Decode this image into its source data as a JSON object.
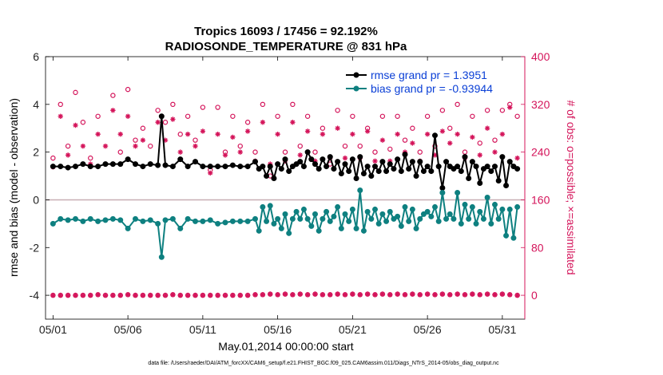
{
  "chart_data": {
    "type": "line",
    "title_line1": "Tropics 16093 / 17456 = 92.192%",
    "title_line2": "RADIOSONDE_TEMPERATURE @ 831 hPa",
    "xlabel": "May.01,2014 00:00:00 start",
    "ylabel": "rmse and bias (model - observation)",
    "y2label": "# of obs: o=possible; ×=assimilated",
    "footnote": "data file: /Users/raeder/DAI/ATM_forcXX/CAM6_setup/f.e21.FHIST_BGC.f09_025.CAM6assim.011/Diags_NTrS_2014-05/obs_diag_output.nc",
    "xlim": [
      0.5,
      32.5
    ],
    "ylim": [
      -5,
      6
    ],
    "y2lim": [
      -40,
      400
    ],
    "x_ticks": [
      1,
      6,
      11,
      16,
      21,
      26,
      31
    ],
    "x_tick_labels": [
      "05/01",
      "05/06",
      "05/11",
      "05/16",
      "05/21",
      "05/26",
      "05/31"
    ],
    "y_ticks": [
      -4,
      -2,
      0,
      2,
      4,
      6
    ],
    "y_tick_labels": [
      "-4",
      "-2",
      "0",
      "2",
      "4",
      "6"
    ],
    "y2_ticks": [
      0,
      80,
      160,
      240,
      320,
      400
    ],
    "y2_tick_labels": [
      "0",
      "80",
      "160",
      "240",
      "320",
      "400"
    ],
    "colors": {
      "rmse": "#000000",
      "bias": "#0e8080",
      "obs": "#d4145a",
      "legend_text": "#0a3fd6",
      "zero_line": "#c8aeb4",
      "axis": "#000000"
    },
    "series": [
      {
        "name": "rmse grand pr = 1.3951",
        "x": [
          1,
          1.5,
          2,
          2.5,
          3,
          3.5,
          4,
          4.5,
          5,
          5.5,
          6,
          6.5,
          7,
          7.5,
          8,
          8.25,
          8.5,
          9,
          9.5,
          10,
          10.5,
          11,
          11.5,
          12,
          12.5,
          13,
          13.5,
          14,
          14.5,
          14.75,
          15,
          15.25,
          15.5,
          15.75,
          16,
          16.25,
          16.5,
          16.75,
          17,
          17.25,
          17.5,
          17.75,
          18,
          18.25,
          18.5,
          18.75,
          19,
          19.25,
          19.5,
          19.75,
          20,
          20.25,
          20.5,
          20.75,
          21,
          21.25,
          21.5,
          21.75,
          22,
          22.25,
          22.5,
          22.75,
          23,
          23.25,
          23.5,
          23.75,
          24,
          24.25,
          24.5,
          24.75,
          25,
          25.25,
          25.5,
          25.75,
          26,
          26.25,
          26.5,
          26.75,
          27,
          27.25,
          27.5,
          27.75,
          28,
          28.25,
          28.5,
          28.75,
          29,
          29.25,
          29.5,
          29.75,
          30,
          30.25,
          30.5,
          30.75,
          31,
          31.25,
          31.5,
          31.75,
          32
        ],
        "values": [
          1.4,
          1.4,
          1.35,
          1.4,
          1.5,
          1.4,
          1.4,
          1.5,
          1.5,
          1.5,
          1.7,
          1.5,
          1.4,
          1.5,
          1.45,
          3.5,
          1.45,
          1.4,
          1.7,
          1.4,
          1.6,
          1.4,
          1.4,
          1.4,
          1.4,
          1.45,
          1.4,
          1.4,
          1.6,
          1.3,
          1.4,
          1.0,
          1.4,
          0.9,
          1.5,
          1.3,
          1.7,
          1.2,
          1.4,
          1.5,
          1.6,
          1.4,
          2.0,
          1.7,
          1.5,
          1.3,
          1.7,
          1.4,
          1.8,
          1.3,
          1.6,
          1.1,
          1.5,
          1.2,
          1.7,
          0.9,
          1.8,
          1.1,
          1.4,
          1.0,
          1.4,
          1.2,
          1.6,
          1.2,
          1.5,
          1.3,
          1.7,
          1.2,
          1.9,
          1.3,
          1.6,
          1.0,
          1.6,
          1.2,
          1.4,
          1.2,
          2.7,
          1.4,
          0.5,
          1.6,
          1.4,
          1.3,
          1.4,
          1.2,
          1.8,
          0.9,
          1.6,
          1.4,
          0.7,
          1.3,
          1.4,
          1.2,
          1.4,
          0.8,
          1.8,
          0.6,
          1.6,
          1.4,
          1.3
        ]
      },
      {
        "name": "bias grand pr = -0.93944",
        "x": [
          1,
          1.5,
          2,
          2.5,
          3,
          3.5,
          4,
          4.5,
          5,
          5.5,
          6,
          6.5,
          7,
          7.5,
          8,
          8.25,
          8.5,
          9,
          9.5,
          10,
          10.5,
          11,
          11.5,
          12,
          12.5,
          13,
          13.5,
          14,
          14.5,
          14.75,
          15,
          15.25,
          15.5,
          15.75,
          16,
          16.25,
          16.5,
          16.75,
          17,
          17.25,
          17.5,
          17.75,
          18,
          18.25,
          18.5,
          18.75,
          19,
          19.25,
          19.5,
          19.75,
          20,
          20.25,
          20.5,
          20.75,
          21,
          21.25,
          21.5,
          21.75,
          22,
          22.25,
          22.5,
          22.75,
          23,
          23.25,
          23.5,
          23.75,
          24,
          24.25,
          24.5,
          24.75,
          25,
          25.25,
          25.5,
          25.75,
          26,
          26.25,
          26.5,
          26.75,
          27,
          27.25,
          27.5,
          27.75,
          28,
          28.25,
          28.5,
          28.75,
          29,
          29.25,
          29.5,
          29.75,
          30,
          30.25,
          30.5,
          30.75,
          31,
          31.25,
          31.5,
          31.75,
          32
        ],
        "values": [
          -1.0,
          -0.8,
          -0.85,
          -0.8,
          -0.9,
          -0.8,
          -0.9,
          -0.85,
          -0.8,
          -0.85,
          -1.2,
          -0.8,
          -0.9,
          -0.85,
          -1.0,
          -2.4,
          -0.85,
          -0.8,
          -1.2,
          -0.8,
          -0.9,
          -0.9,
          -0.85,
          -1.0,
          -0.95,
          -0.9,
          -0.9,
          -0.9,
          -0.8,
          -1.3,
          -0.3,
          -0.9,
          -0.25,
          -1.0,
          -0.8,
          -1.2,
          -0.6,
          -1.4,
          -0.8,
          -0.5,
          -0.8,
          -0.4,
          -0.8,
          -1.1,
          -0.6,
          -1.3,
          -0.8,
          -0.5,
          -0.9,
          -0.7,
          -0.3,
          -1.2,
          -0.6,
          -0.9,
          -0.4,
          -1.2,
          0.4,
          -1.3,
          -0.5,
          -0.8,
          -0.4,
          -1.0,
          -0.6,
          -0.9,
          -0.5,
          -0.8,
          -0.7,
          -1.1,
          -0.3,
          -0.9,
          -0.4,
          -1.2,
          -0.8,
          -0.6,
          -0.5,
          -0.7,
          -0.3,
          -0.9,
          0.3,
          -0.8,
          -0.6,
          -0.8,
          0.3,
          -1.0,
          -0.2,
          -0.8,
          -0.3,
          -1.0,
          -0.5,
          -0.8,
          0.1,
          -1.0,
          -0.2,
          -0.8,
          -0.4,
          -1.5,
          -0.4,
          -1.6,
          -0.3
        ]
      }
    ],
    "obs_possible": {
      "x": [
        1,
        1.5,
        2,
        2.5,
        3,
        3.5,
        4,
        4.5,
        5,
        5.5,
        6,
        6.5,
        7,
        7.5,
        8,
        8.5,
        9,
        9.5,
        10,
        10.5,
        11,
        11.5,
        12,
        12.5,
        13,
        13.5,
        14,
        14.5,
        15,
        15.5,
        16,
        16.5,
        17,
        17.5,
        18,
        18.5,
        19,
        19.5,
        20,
        20.5,
        21,
        21.5,
        22,
        22.5,
        23,
        23.5,
        24,
        24.5,
        25,
        25.5,
        26,
        26.5,
        27,
        27.5,
        28,
        28.5,
        29,
        29.5,
        30,
        30.5,
        31,
        31.5,
        32
      ],
      "values": [
        230,
        320,
        250,
        340,
        290,
        230,
        300,
        220,
        335,
        240,
        345,
        260,
        280,
        250,
        310,
        290,
        320,
        270,
        300,
        260,
        315,
        210,
        315,
        240,
        300,
        250,
        290,
        240,
        320,
        200,
        300,
        240,
        320,
        250,
        300,
        240,
        280,
        220,
        310,
        250,
        300,
        250,
        280,
        240,
        300,
        245,
        300,
        260,
        280,
        240,
        300,
        250,
        310,
        280,
        320,
        240,
        300,
        255,
        310,
        260,
        310,
        320,
        300
      ]
    },
    "obs_assimilated": {
      "x": [
        1,
        1.5,
        2,
        2.5,
        3,
        3.5,
        4,
        4.5,
        5,
        5.5,
        6,
        6.5,
        7,
        7.5,
        8,
        8.5,
        9,
        9.5,
        10,
        10.5,
        11,
        11.5,
        12,
        12.5,
        13,
        13.5,
        14,
        14.5,
        15,
        15.5,
        16,
        16.5,
        17,
        17.5,
        18,
        18.5,
        19,
        19.5,
        20,
        20.5,
        21,
        21.5,
        22,
        22.5,
        23,
        23.5,
        24,
        24.5,
        25,
        25.5,
        26,
        26.5,
        27,
        27.5,
        28,
        28.5,
        29,
        29.5,
        30,
        30.5,
        31,
        31.5,
        32
      ],
      "values": [
        215,
        300,
        235,
        285,
        250,
        220,
        270,
        250,
        310,
        270,
        300,
        250,
        260,
        220,
        290,
        260,
        295,
        240,
        270,
        250,
        275,
        205,
        270,
        235,
        265,
        240,
        275,
        225,
        290,
        220,
        270,
        225,
        290,
        235,
        275,
        225,
        270,
        230,
        280,
        230,
        270,
        230,
        275,
        225,
        260,
        225,
        270,
        240,
        255,
        225,
        270,
        235,
        275,
        255,
        270,
        230,
        265,
        235,
        280,
        240,
        270,
        315,
        230
      ]
    },
    "obs_possible_bottom": {
      "x": [
        1,
        1.5,
        2,
        2.5,
        3,
        3.5,
        4,
        4.5,
        5,
        5.5,
        6,
        6.5,
        7,
        7.5,
        8,
        8.5,
        9,
        9.5,
        10,
        10.5,
        11,
        11.5,
        12,
        12.5,
        13,
        13.5,
        14,
        14.5,
        15,
        15.5,
        16,
        16.5,
        17,
        17.5,
        18,
        18.5,
        19,
        19.5,
        20,
        20.5,
        21,
        21.5,
        22,
        22.5,
        23,
        23.5,
        24,
        24.5,
        25,
        25.5,
        26,
        26.5,
        27,
        27.5,
        28,
        28.5,
        29,
        29.5,
        30,
        30.5,
        31,
        31.5,
        32
      ],
      "values": [
        0,
        0,
        0,
        0,
        0,
        0,
        1,
        0,
        0,
        0,
        1,
        0,
        0,
        0,
        0,
        0,
        1,
        0,
        0,
        0,
        0,
        0,
        0,
        0,
        0,
        0,
        0,
        1,
        1,
        2,
        1,
        2,
        1,
        2,
        1,
        2,
        1,
        1,
        2,
        1,
        2,
        1,
        2,
        1,
        2,
        1,
        2,
        1,
        2,
        1,
        2,
        1,
        2,
        1,
        2,
        1,
        2,
        1,
        2,
        1,
        2,
        1,
        0
      ]
    }
  }
}
